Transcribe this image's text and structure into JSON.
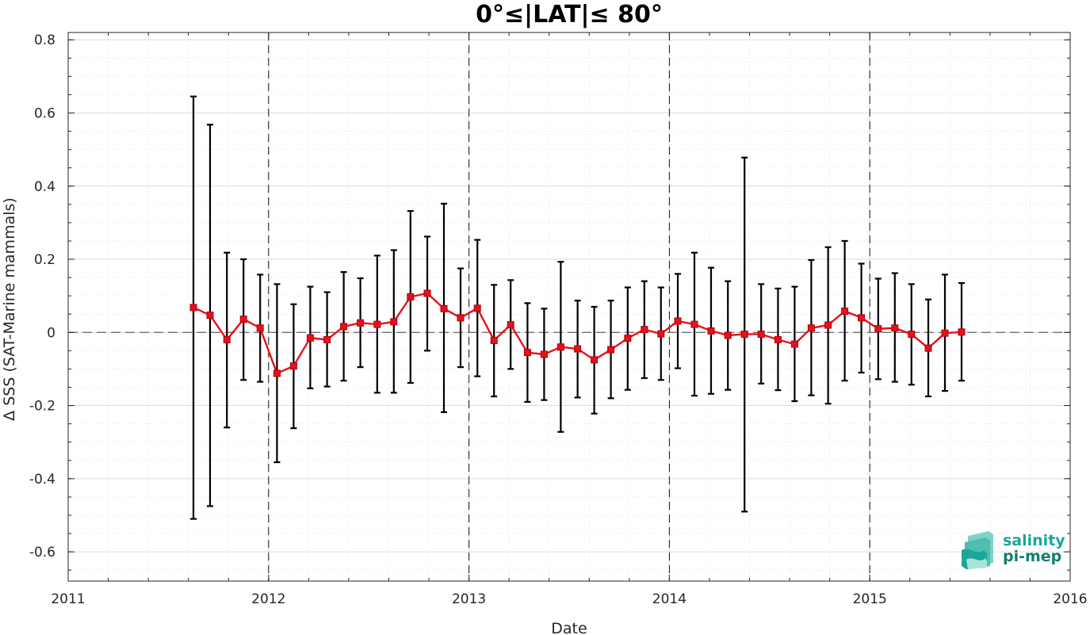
{
  "chart_data": {
    "type": "line",
    "title": "0°≤|LAT|≤ 80°",
    "xlabel": "Date",
    "ylabel": "Δ SSS (SAT-Marine mammals)",
    "xlim": [
      2011,
      2016
    ],
    "ylim": [
      -0.68,
      0.82
    ],
    "x_ticks": [
      2011,
      2012,
      2013,
      2014,
      2015,
      2016
    ],
    "x_tick_labels": [
      "2011",
      "2012",
      "2013",
      "2014",
      "2015",
      "2016"
    ],
    "y_ticks": [
      -0.6,
      -0.4,
      -0.2,
      0,
      0.2,
      0.4,
      0.6,
      0.8
    ],
    "y_tick_labels": [
      "-0.6",
      "-0.4",
      "-0.2",
      "0",
      "0.2",
      "0.4",
      "0.6",
      "0.8"
    ],
    "grid": true,
    "minor_grid": true,
    "year_markers": [
      2012,
      2013,
      2014,
      2015
    ],
    "zero_line": 0,
    "colors": {
      "series": "#e8101a",
      "errorbar": "#000000",
      "logo_teal": "#1aa699"
    },
    "series": [
      {
        "x": [
          2011.625,
          2011.708,
          2011.792,
          2011.875,
          2011.958,
          2012.042,
          2012.125,
          2012.208,
          2012.292,
          2012.375,
          2012.458,
          2012.542,
          2012.625,
          2012.708,
          2012.792,
          2012.875,
          2012.958,
          2013.042,
          2013.125,
          2013.208,
          2013.292,
          2013.375,
          2013.458,
          2013.542,
          2013.625,
          2013.708,
          2013.792,
          2013.875,
          2013.958,
          2014.042,
          2014.125,
          2014.208,
          2014.292,
          2014.375,
          2014.458,
          2014.542,
          2014.625,
          2014.708,
          2014.792,
          2014.875,
          2014.958,
          2015.042,
          2015.125,
          2015.208,
          2015.292,
          2015.375,
          2015.458
        ],
        "y": [
          0.068,
          0.047,
          -0.02,
          0.036,
          0.012,
          -0.112,
          -0.092,
          -0.015,
          -0.02,
          0.016,
          0.026,
          0.022,
          0.029,
          0.097,
          0.107,
          0.065,
          0.04,
          0.066,
          -0.022,
          0.021,
          -0.055,
          -0.06,
          -0.04,
          -0.045,
          -0.075,
          -0.047,
          -0.016,
          0.008,
          -0.004,
          0.031,
          0.022,
          0.004,
          -0.008,
          -0.005,
          -0.005,
          -0.02,
          -0.032,
          0.012,
          0.02,
          0.058,
          0.04,
          0.01,
          0.012,
          -0.005,
          -0.043,
          -0.002,
          0.001
        ],
        "err_low": [
          -0.51,
          -0.475,
          -0.26,
          -0.13,
          -0.135,
          -0.355,
          -0.262,
          -0.153,
          -0.148,
          -0.132,
          -0.095,
          -0.165,
          -0.165,
          -0.138,
          -0.05,
          -0.218,
          -0.095,
          -0.12,
          -0.175,
          -0.1,
          -0.19,
          -0.185,
          -0.272,
          -0.178,
          -0.222,
          -0.18,
          -0.157,
          -0.125,
          -0.13,
          -0.098,
          -0.173,
          -0.168,
          -0.157,
          -0.49,
          -0.14,
          -0.158,
          -0.188,
          -0.172,
          -0.195,
          -0.132,
          -0.11,
          -0.128,
          -0.135,
          -0.143,
          -0.175,
          -0.16,
          -0.132
        ],
        "err_high": [
          0.645,
          0.568,
          0.218,
          0.2,
          0.158,
          0.132,
          0.077,
          0.125,
          0.11,
          0.165,
          0.148,
          0.21,
          0.225,
          0.332,
          0.262,
          0.352,
          0.175,
          0.253,
          0.13,
          0.143,
          0.08,
          0.065,
          0.193,
          0.087,
          0.07,
          0.087,
          0.123,
          0.14,
          0.123,
          0.16,
          0.218,
          0.177,
          0.14,
          0.478,
          0.132,
          0.12,
          0.125,
          0.198,
          0.233,
          0.25,
          0.188,
          0.147,
          0.162,
          0.132,
          0.09,
          0.158,
          0.135
        ]
      }
    ]
  },
  "logo": {
    "line1": "salinity",
    "line2": "pi-mep"
  }
}
